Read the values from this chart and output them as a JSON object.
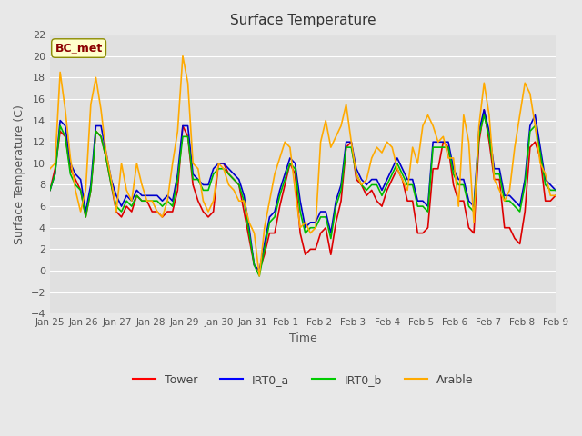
{
  "title": "Surface Temperature",
  "ylabel": "Surface Temperature (C)",
  "xlabel": "Time",
  "annotation": "BC_met",
  "ylim": [
    -4,
    22
  ],
  "yticks": [
    -4,
    -2,
    0,
    2,
    4,
    6,
    8,
    10,
    12,
    14,
    16,
    18,
    20,
    22
  ],
  "xtick_labels": [
    "Jan 25",
    "Jan 26",
    "Jan 27",
    "Jan 28",
    "Jan 29",
    "Jan 30",
    "Jan 31",
    "Feb 1",
    "Feb 2",
    "Feb 3",
    "Feb 4",
    "Feb 5",
    "Feb 6",
    "Feb 7",
    "Feb 8",
    "Feb 9"
  ],
  "legend_labels": [
    "Tower",
    "IRT0_a",
    "IRT0_b",
    "Arable"
  ],
  "legend_colors": [
    "#ff0000",
    "#0000ff",
    "#00cc00",
    "#ffaa00"
  ],
  "background_color": "#e8e8e8",
  "plot_bg_color": "#e0e0e0",
  "tower_color": "#dd0000",
  "irt0a_color": "#0000cc",
  "irt0b_color": "#00bb00",
  "arable_color": "#ffaa00",
  "tower_data": [
    7.5,
    9.5,
    13.0,
    12.5,
    9.5,
    8.5,
    7.5,
    5.0,
    7.5,
    13.0,
    12.5,
    10.5,
    8.0,
    5.5,
    5.0,
    6.0,
    5.5,
    7.0,
    6.5,
    6.5,
    5.5,
    5.5,
    5.0,
    5.5,
    5.5,
    7.5,
    13.5,
    12.5,
    8.0,
    6.5,
    5.5,
    5.0,
    5.5,
    10.0,
    10.0,
    9.0,
    8.5,
    8.0,
    5.5,
    3.0,
    0.5,
    0.0,
    1.5,
    3.5,
    3.5,
    6.0,
    8.0,
    10.0,
    9.0,
    3.5,
    1.5,
    2.0,
    2.0,
    3.5,
    4.0,
    1.5,
    4.5,
    6.5,
    11.5,
    12.0,
    8.5,
    8.0,
    7.0,
    7.5,
    6.5,
    6.0,
    7.5,
    8.5,
    9.5,
    8.5,
    6.5,
    6.5,
    3.5,
    3.5,
    4.0,
    9.5,
    9.5,
    12.0,
    11.5,
    8.0,
    6.5,
    6.5,
    4.0,
    3.5,
    12.0,
    15.0,
    12.0,
    8.5,
    8.5,
    4.0,
    4.0,
    3.0,
    2.5,
    5.5,
    11.5,
    12.0,
    10.5,
    6.5,
    6.5,
    7.0
  ],
  "irt0a_data": [
    7.5,
    9.0,
    14.0,
    13.5,
    10.0,
    9.0,
    8.5,
    5.5,
    8.0,
    13.5,
    13.5,
    11.0,
    8.5,
    7.0,
    6.0,
    7.0,
    6.5,
    7.5,
    7.0,
    7.0,
    7.0,
    7.0,
    6.5,
    7.0,
    6.5,
    9.0,
    13.5,
    13.5,
    9.0,
    8.5,
    8.0,
    8.0,
    9.5,
    10.0,
    10.0,
    9.5,
    9.0,
    8.5,
    7.0,
    4.0,
    0.5,
    0.0,
    2.5,
    5.0,
    5.5,
    7.5,
    9.0,
    10.5,
    10.0,
    6.5,
    4.0,
    4.5,
    4.5,
    5.5,
    5.5,
    3.5,
    6.5,
    8.0,
    12.0,
    12.0,
    9.5,
    8.5,
    8.0,
    8.5,
    8.5,
    7.5,
    8.5,
    9.5,
    10.5,
    9.5,
    8.5,
    8.5,
    6.5,
    6.5,
    6.0,
    12.0,
    12.0,
    12.0,
    12.0,
    9.5,
    8.5,
    8.5,
    6.5,
    6.0,
    13.0,
    15.0,
    13.0,
    9.5,
    9.5,
    7.0,
    7.0,
    6.5,
    6.0,
    8.5,
    13.5,
    14.5,
    11.5,
    8.5,
    8.0,
    7.5
  ],
  "irt0b_data": [
    7.5,
    9.0,
    13.5,
    12.5,
    9.0,
    8.0,
    7.5,
    5.0,
    7.5,
    13.0,
    12.5,
    10.5,
    8.0,
    6.0,
    5.5,
    6.5,
    6.0,
    7.0,
    6.5,
    6.5,
    6.5,
    6.5,
    6.0,
    6.5,
    6.0,
    8.5,
    12.5,
    12.5,
    8.5,
    8.5,
    7.5,
    7.5,
    9.0,
    9.5,
    9.5,
    9.0,
    8.5,
    8.0,
    6.5,
    3.5,
    0.5,
    -0.5,
    2.0,
    4.5,
    5.0,
    7.0,
    8.5,
    10.0,
    9.5,
    5.5,
    3.5,
    4.0,
    4.0,
    5.0,
    5.0,
    3.0,
    6.0,
    7.5,
    11.5,
    11.5,
    9.0,
    8.0,
    7.5,
    8.0,
    8.0,
    7.0,
    8.0,
    9.0,
    10.0,
    9.0,
    8.0,
    8.0,
    6.0,
    6.0,
    5.5,
    11.5,
    11.5,
    11.5,
    11.5,
    9.0,
    8.0,
    8.0,
    6.0,
    5.5,
    12.5,
    14.5,
    12.5,
    9.0,
    9.0,
    6.5,
    6.5,
    6.0,
    5.5,
    8.0,
    13.0,
    13.5,
    11.0,
    8.0,
    7.5,
    7.5
  ],
  "arable_data": [
    9.5,
    10.0,
    18.5,
    15.0,
    10.5,
    7.5,
    5.5,
    7.5,
    15.5,
    18.0,
    15.0,
    11.0,
    8.5,
    5.5,
    10.0,
    7.5,
    6.5,
    10.0,
    8.0,
    6.5,
    6.5,
    5.5,
    5.0,
    6.5,
    10.0,
    13.0,
    20.0,
    17.5,
    10.0,
    9.5,
    6.5,
    5.5,
    6.5,
    10.0,
    9.5,
    8.0,
    7.5,
    6.5,
    6.5,
    4.5,
    3.5,
    -0.5,
    4.0,
    6.5,
    9.0,
    10.5,
    12.0,
    11.5,
    7.5,
    4.0,
    4.5,
    3.5,
    4.0,
    12.0,
    14.0,
    11.5,
    12.5,
    13.5,
    15.5,
    12.0,
    9.0,
    8.0,
    8.5,
    10.5,
    11.5,
    11.0,
    12.0,
    11.5,
    9.5,
    8.5,
    7.5,
    11.5,
    10.0,
    13.5,
    14.5,
    13.5,
    12.0,
    12.5,
    10.5,
    10.5,
    6.0,
    14.5,
    12.0,
    4.5,
    13.5,
    17.5,
    14.5,
    8.5,
    7.5,
    6.5,
    7.5,
    11.5,
    14.5,
    17.5,
    16.5,
    13.5,
    10.0,
    9.0,
    7.0,
    7.0
  ]
}
